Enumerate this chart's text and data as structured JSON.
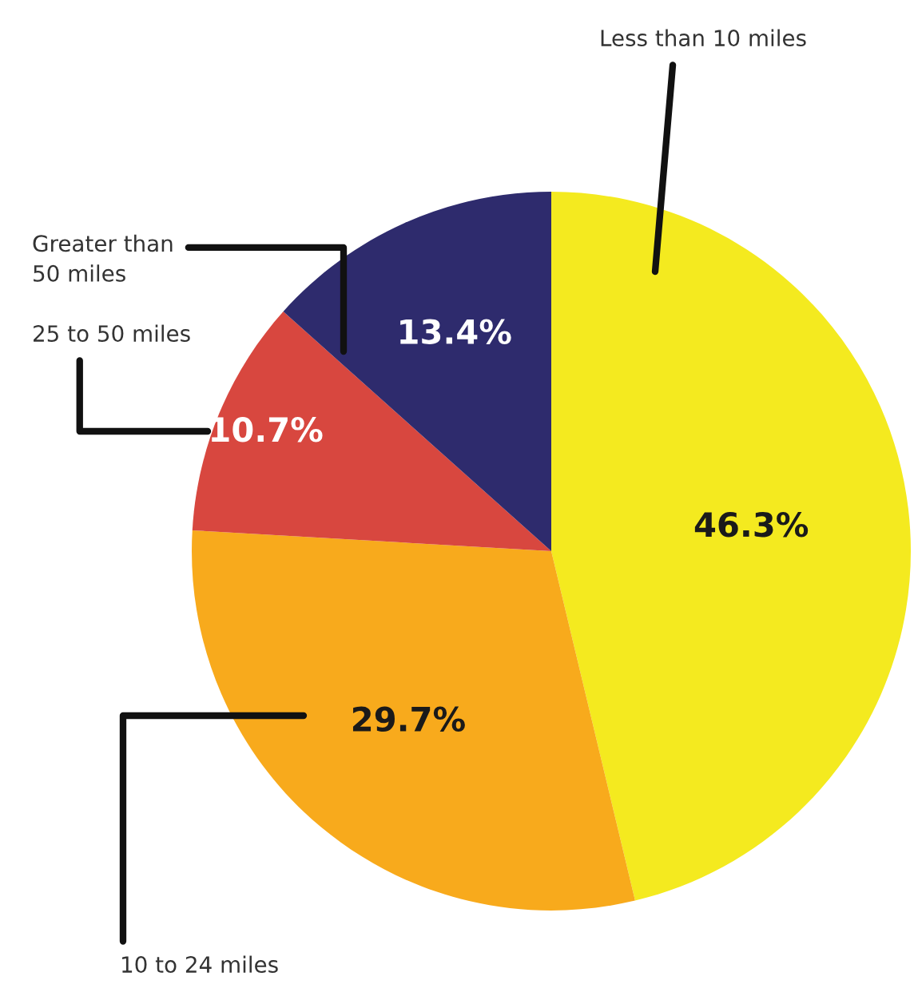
{
  "chart_data": {
    "type": "pie",
    "categories": [
      "Less than 10 miles",
      "10 to 24 miles",
      "25 to 50 miles",
      "Greater than\n50 miles"
    ],
    "values": [
      46.3,
      29.7,
      10.7,
      13.4
    ],
    "value_labels": [
      "46.3%",
      "29.7%",
      "10.7%",
      "13.4%"
    ],
    "colors": [
      "#f4ea1f",
      "#f8aa1c",
      "#d8473f",
      "#2e2b6d"
    ],
    "legend": false
  }
}
